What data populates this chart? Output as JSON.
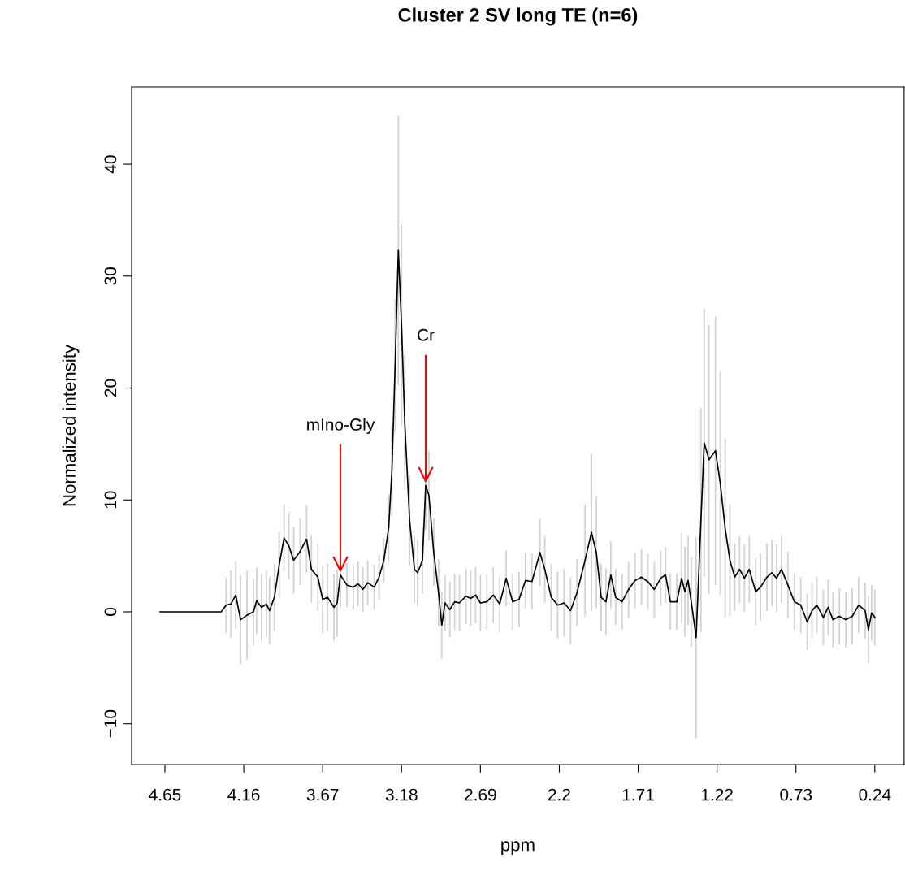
{
  "chart_data": {
    "type": "line",
    "title": "Cluster 2 SV long TE (n=6)",
    "xlabel": "ppm",
    "ylabel": "Normalized intensity",
    "x": [
      4.68,
      4.3,
      4.27,
      4.24,
      4.21,
      4.18,
      4.14,
      4.1,
      4.08,
      4.05,
      4.02,
      4.0,
      3.97,
      3.94,
      3.91,
      3.88,
      3.85,
      3.81,
      3.77,
      3.74,
      3.7,
      3.67,
      3.64,
      3.6,
      3.58,
      3.56,
      3.52,
      3.48,
      3.45,
      3.42,
      3.39,
      3.35,
      3.32,
      3.29,
      3.26,
      3.24,
      3.22,
      3.2,
      3.18,
      3.16,
      3.13,
      3.1,
      3.08,
      3.05,
      3.03,
      3.01,
      2.98,
      2.95,
      2.93,
      2.91,
      2.88,
      2.85,
      2.82,
      2.78,
      2.75,
      2.72,
      2.69,
      2.65,
      2.61,
      2.57,
      2.53,
      2.49,
      2.45,
      2.41,
      2.37,
      2.32,
      2.29,
      2.25,
      2.21,
      2.17,
      2.13,
      2.09,
      2.04,
      2.0,
      1.97,
      1.94,
      1.91,
      1.88,
      1.85,
      1.81,
      1.77,
      1.73,
      1.69,
      1.65,
      1.61,
      1.57,
      1.54,
      1.51,
      1.47,
      1.44,
      1.42,
      1.4,
      1.38,
      1.35,
      1.32,
      1.3,
      1.27,
      1.23,
      1.2,
      1.17,
      1.14,
      1.11,
      1.08,
      1.05,
      1.02,
      0.98,
      0.95,
      0.91,
      0.88,
      0.85,
      0.82,
      0.78,
      0.74,
      0.7,
      0.66,
      0.63,
      0.6,
      0.56,
      0.53,
      0.5,
      0.46,
      0.42,
      0.38,
      0.34,
      0.3,
      0.28,
      0.26,
      0.24
    ],
    "series": [
      {
        "color": "#000000",
        "values": [
          0,
          0,
          0.6,
          0.7,
          1.5,
          -0.7,
          -0.3,
          0,
          1.0,
          0.4,
          0.7,
          0.1,
          1.3,
          4.2,
          6.6,
          5.9,
          4.6,
          5.4,
          6.5,
          3.8,
          3.1,
          1.1,
          1.3,
          0.4,
          0.8,
          3.3,
          2.4,
          2.2,
          2.5,
          2.0,
          2.6,
          2.2,
          3.1,
          4.6,
          7.5,
          12.6,
          22.0,
          32.3,
          25.6,
          16.9,
          8.2,
          3.8,
          3.5,
          4.6,
          11.3,
          10.4,
          5.3,
          1.7,
          -1.2,
          0.8,
          0.2,
          0.9,
          0.8,
          1.4,
          1.2,
          1.5,
          0.8,
          0.9,
          1.5,
          0.7,
          3.0,
          0.9,
          1.1,
          2.8,
          2.7,
          5.3,
          3.8,
          1.3,
          0.6,
          0.8,
          0.1,
          1.7,
          4.6,
          7.1,
          5.3,
          1.3,
          0.9,
          3.3,
          1.3,
          0.9,
          2.0,
          2.8,
          3.1,
          2.7,
          2.0,
          3.0,
          3.3,
          0.9,
          0.9,
          3.0,
          1.8,
          2.8,
          0.9,
          -2.3,
          8.2,
          15.1,
          13.6,
          14.4,
          11.5,
          7.5,
          4.6,
          3.1,
          3.8,
          3.0,
          3.8,
          1.8,
          2.2,
          3.1,
          3.5,
          3.0,
          3.8,
          2.4,
          0.9,
          0.6,
          -0.9,
          0.1,
          0.6,
          -0.5,
          0.4,
          -0.7,
          -0.4,
          -0.7,
          -0.4,
          0.6,
          0.1,
          -1.6,
          -0.1,
          -0.5
        ],
        "errors": [
          null,
          null,
          2.5,
          3,
          3,
          4,
          4,
          3,
          3,
          3,
          3,
          3,
          3,
          3,
          3,
          3,
          3,
          3,
          3,
          3,
          3,
          3,
          3,
          3,
          3,
          3,
          2,
          2,
          2,
          2,
          2,
          2,
          2,
          2,
          3,
          4,
          6,
          12,
          9,
          6,
          4,
          3,
          3,
          3,
          4,
          4,
          3,
          3,
          3,
          2.5,
          2.5,
          2.5,
          2.5,
          2.5,
          2.5,
          2.5,
          2.5,
          2.5,
          2.5,
          2.5,
          2.5,
          2.5,
          2.5,
          2.5,
          2.5,
          3,
          3,
          3,
          3,
          3,
          3,
          3,
          5,
          7,
          5,
          3,
          3,
          3,
          2.5,
          2.5,
          2.5,
          2.5,
          2.5,
          2.5,
          2.5,
          2.5,
          2.5,
          2.5,
          2.5,
          4,
          4,
          4,
          4,
          9,
          10,
          12,
          12,
          12,
          10,
          8,
          5,
          3,
          3,
          3,
          3,
          3,
          3,
          3,
          3,
          3,
          3,
          3,
          2.5,
          2.5,
          2.5,
          2.5,
          2.5,
          2.5,
          2.5,
          2.5,
          2.5,
          2.5,
          2.5,
          2.5,
          2.5,
          3,
          2.5,
          2.5
        ]
      }
    ],
    "xlim": [
      4.857,
      0.058
    ],
    "ylim": [
      -13.65,
      46.9
    ],
    "xticks": [
      4.65,
      4.16,
      3.67,
      3.18,
      2.69,
      2.2,
      1.71,
      1.22,
      0.73,
      0.24
    ],
    "yticks": [
      {
        "value": -10,
        "label": "−10"
      },
      0,
      10,
      20,
      30,
      40
    ],
    "grid": false,
    "legend": false,
    "marker": "none",
    "line_style": "solid",
    "annotations": [
      {
        "text": "mIno-Gly",
        "x": 3.56,
        "y": 3.3
      },
      {
        "text": "Cr",
        "x": 3.03,
        "y": 11.3
      }
    ]
  }
}
